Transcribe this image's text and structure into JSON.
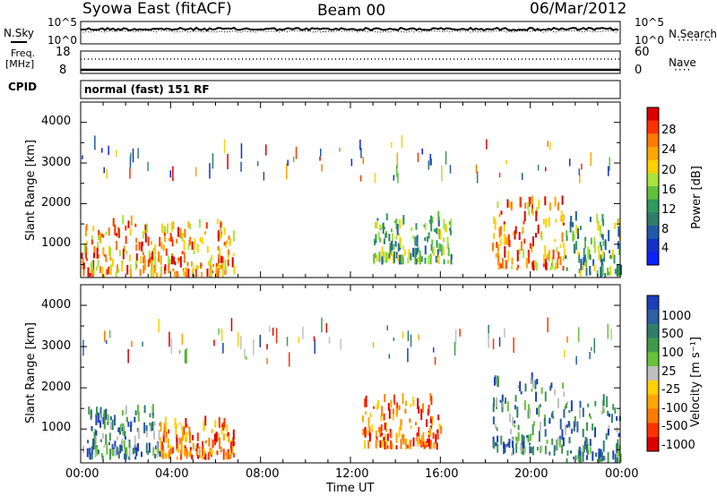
{
  "header": {
    "station": "Syowa East (fitACF)",
    "beam": "Beam 00",
    "date": "06/Mar/2012"
  },
  "strip": {
    "nsky_label": "N.Sky",
    "nsearch_label": "N.Search",
    "nsearch_legend": "········",
    "noise_left_ticks": [
      "10^5",
      "10^0"
    ],
    "noise_right_ticks": [
      "10^5",
      "10^0"
    ],
    "freq_label": "Freq.",
    "freq_unit": "[MHz]",
    "freq_ticks": [
      "18",
      "8"
    ],
    "nave_label": "Nave",
    "nave_legend": "····",
    "nave_ticks": [
      "60",
      "0"
    ],
    "cpid_label": "CPID",
    "cpid_value": "normal (fast) 151 RF"
  },
  "chart_data": [
    {
      "type": "heatmap",
      "panel": "power",
      "ylabel": "Slant Range [km]",
      "yticks": [
        "4000",
        "3000",
        "2000",
        "1000"
      ],
      "ylim": [
        180,
        4500
      ],
      "xlim": [
        0,
        24
      ],
      "xticks": [
        "00:00",
        "04:00",
        "08:00",
        "12:00",
        "16:00",
        "20:00",
        "00:00"
      ],
      "colorbar": {
        "label": "Power [dB]",
        "ticks": [
          "28",
          "24",
          "20",
          "16",
          "12",
          "8",
          "4"
        ],
        "colors": [
          "#dd0000",
          "#ff3300",
          "#ff7a00",
          "#ffa500",
          "#ffd000",
          "#a8e43a",
          "#5fc23a",
          "#2e9a5e",
          "#2f7d6a",
          "#1f5aa8",
          "#1430c8",
          "#0a22ff"
        ]
      },
      "regions": [
        {
          "t0": 0.0,
          "t1": 6.8,
          "r0": 180,
          "r1": 1500,
          "level": "high"
        },
        {
          "t0": 13.0,
          "t1": 16.5,
          "r0": 500,
          "r1": 1600,
          "level": "mid"
        },
        {
          "t0": 18.3,
          "t1": 21.5,
          "r0": 350,
          "r1": 2000,
          "level": "high"
        },
        {
          "t0": 21.5,
          "t1": 24.0,
          "r0": 180,
          "r1": 1600,
          "level": "mid"
        }
      ]
    },
    {
      "type": "heatmap",
      "panel": "velocity",
      "ylabel": "Slant Range [km]",
      "yticks": [
        "4000",
        "3000",
        "2000",
        "1000"
      ],
      "ylim": [
        180,
        4500
      ],
      "xlim": [
        0,
        24
      ],
      "xticks": [
        "00:00",
        "04:00",
        "08:00",
        "12:00",
        "16:00",
        "20:00",
        "00:00"
      ],
      "xlabel": "Time UT",
      "colorbar": {
        "label": "Velocity [m s⁻¹]",
        "ticks": [
          "1000",
          "500",
          "100",
          "25",
          "-25",
          "-100",
          "-500",
          "-1000"
        ],
        "colors": [
          "#1b3fb8",
          "#2c5fa3",
          "#2f7d6a",
          "#3f9a4a",
          "#69c23a",
          "#c0c0c0",
          "#ffd000",
          "#ffa500",
          "#ff7a00",
          "#ff3300",
          "#dd0000"
        ]
      },
      "regions": [
        {
          "t0": 0.0,
          "t1": 3.5,
          "r0": 250,
          "r1": 1400,
          "level": "positive"
        },
        {
          "t0": 3.5,
          "t1": 6.8,
          "r0": 250,
          "r1": 1100,
          "level": "negative"
        },
        {
          "t0": 12.5,
          "t1": 16.0,
          "r0": 500,
          "r1": 1700,
          "level": "negative"
        },
        {
          "t0": 18.3,
          "t1": 21.5,
          "r0": 350,
          "r1": 2100,
          "level": "positive"
        },
        {
          "t0": 21.5,
          "t1": 24.0,
          "r0": 180,
          "r1": 1600,
          "level": "positive"
        }
      ]
    }
  ]
}
